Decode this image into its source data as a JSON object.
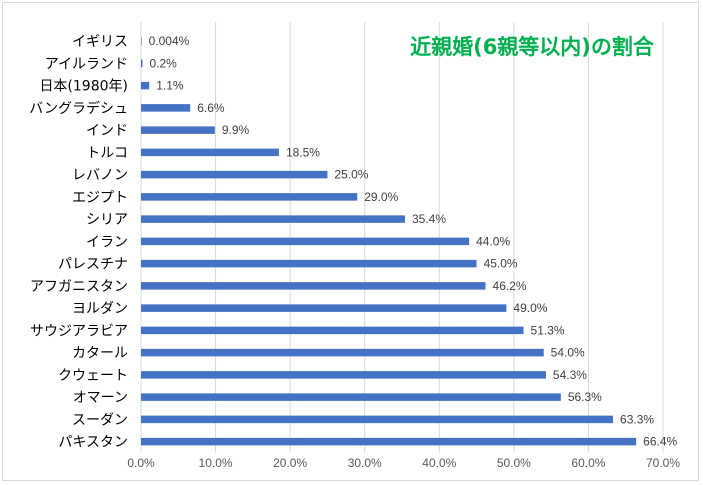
{
  "chart_data": {
    "type": "bar",
    "orientation": "horizontal",
    "title": "近親婚(6親等以内)の割合",
    "title_color": "#00b050",
    "bar_color": "#4472c4",
    "grid": "vertical",
    "legend": "none",
    "xlim": [
      0,
      70
    ],
    "x_ticks": [
      0,
      10,
      20,
      30,
      40,
      50,
      60,
      70
    ],
    "x_tick_labels": [
      "0.0%",
      "10.0%",
      "20.0%",
      "30.0%",
      "40.0%",
      "50.0%",
      "60.0%",
      "70.0%"
    ],
    "categories": [
      "イギリス",
      "アイルランド",
      "日本(1980年)",
      "バングラデシュ",
      "インド",
      "トルコ",
      "レバノン",
      "エジプト",
      "シリア",
      "イラン",
      "パレスチナ",
      "アフガニスタン",
      "ヨルダン",
      "サウジアラビア",
      "カタール",
      "クウェート",
      "オマーン",
      "スーダン",
      "パキスタン"
    ],
    "values": [
      0.004,
      0.2,
      1.1,
      6.6,
      9.9,
      18.5,
      25.0,
      29.0,
      35.4,
      44.0,
      45.0,
      46.2,
      49.0,
      51.3,
      54.0,
      54.3,
      56.3,
      63.3,
      66.4
    ],
    "value_labels": [
      "0.004%",
      "0.2%",
      "1.1%",
      "6.6%",
      "9.9%",
      "18.5%",
      "25.0%",
      "29.0%",
      "35.4%",
      "44.0%",
      "45.0%",
      "46.2%",
      "49.0%",
      "51.3%",
      "54.0%",
      "54.3%",
      "56.3%",
      "63.3%",
      "66.4%"
    ]
  }
}
